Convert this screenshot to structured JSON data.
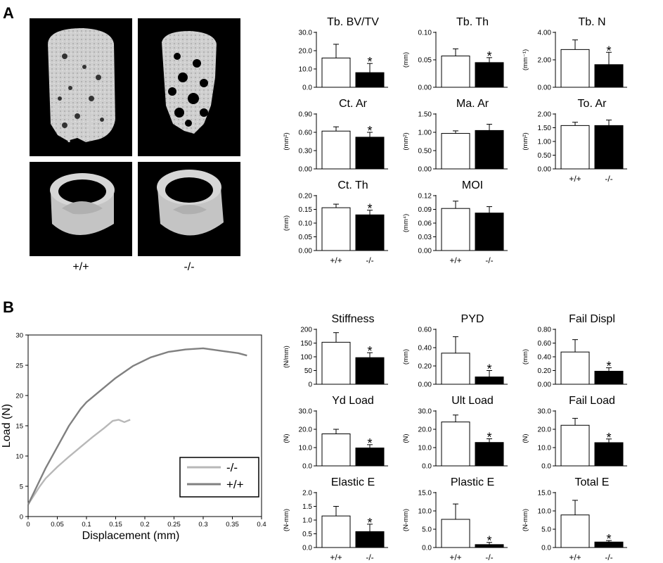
{
  "panel_labels": {
    "a": "A",
    "b": "B"
  },
  "microct": {
    "genotype_labels": [
      "+/+",
      "-/-"
    ],
    "images": [
      {
        "name": "trabecular-wildtype",
        "genotype": "+/+",
        "kind": "trabecular"
      },
      {
        "name": "trabecular-knockout",
        "genotype": "-/-",
        "kind": "trabecular"
      },
      {
        "name": "cortical-wildtype",
        "genotype": "+/+",
        "kind": "cortical"
      },
      {
        "name": "cortical-knockout",
        "genotype": "-/-",
        "kind": "cortical"
      }
    ]
  },
  "colors": {
    "wildtype_bar": "#ffffff",
    "knockout_bar": "#000000",
    "wildtype_line": "#808080",
    "knockout_line": "#b8b8b8"
  },
  "chart_data": [
    {
      "type": "bar",
      "panel": "A",
      "title": "Tb. BV/TV",
      "ylabel": "",
      "ylim": [
        0,
        30
      ],
      "ticks": [
        "0.0",
        "10.0",
        "20.0",
        "30.0"
      ],
      "categories": [
        "+/+",
        "-/-"
      ],
      "show_categories": false,
      "values": [
        16.0,
        8.0
      ],
      "errors": [
        7.5,
        5.0
      ],
      "significant": [
        false,
        true
      ]
    },
    {
      "type": "bar",
      "panel": "A",
      "title": "Tb. Th",
      "ylabel": "(mm)",
      "ylim": [
        0,
        0.1
      ],
      "ticks": [
        "0.00",
        "0.05",
        "0.10"
      ],
      "categories": [
        "+/+",
        "-/-"
      ],
      "show_categories": false,
      "values": [
        0.057,
        0.045
      ],
      "errors": [
        0.013,
        0.009
      ],
      "significant": [
        false,
        true
      ]
    },
    {
      "type": "bar",
      "panel": "A",
      "title": "Tb. N",
      "ylabel": "(mm⁻¹)",
      "ylim": [
        0,
        4
      ],
      "ticks": [
        "0.00",
        "2.00",
        "4.00"
      ],
      "categories": [
        "+/+",
        "-/-"
      ],
      "show_categories": false,
      "values": [
        2.75,
        1.65
      ],
      "errors": [
        0.7,
        0.9
      ],
      "significant": [
        false,
        true
      ]
    },
    {
      "type": "bar",
      "panel": "A",
      "title": "Ct. Ar",
      "ylabel": "(mm²)",
      "ylim": [
        0,
        0.9
      ],
      "ticks": [
        "0.00",
        "0.30",
        "0.60",
        "0.90"
      ],
      "categories": [
        "+/+",
        "-/-"
      ],
      "show_categories": false,
      "values": [
        0.62,
        0.52
      ],
      "errors": [
        0.07,
        0.08
      ],
      "significant": [
        false,
        true
      ]
    },
    {
      "type": "bar",
      "panel": "A",
      "title": "Ma. Ar",
      "ylabel": "(mm²)",
      "ylim": [
        0,
        1.5
      ],
      "ticks": [
        "0.00",
        "0.50",
        "1.00",
        "1.50"
      ],
      "categories": [
        "+/+",
        "-/-"
      ],
      "show_categories": false,
      "values": [
        0.97,
        1.05
      ],
      "errors": [
        0.07,
        0.17
      ],
      "significant": [
        false,
        false
      ]
    },
    {
      "type": "bar",
      "panel": "A",
      "title": "To. Ar",
      "ylabel": "(mm²)",
      "ylim": [
        0,
        2
      ],
      "ticks": [
        "0.00",
        "0.50",
        "1.00",
        "1.50",
        "2.00"
      ],
      "categories": [
        "+/+",
        "-/-"
      ],
      "show_categories": true,
      "values": [
        1.58,
        1.58
      ],
      "errors": [
        0.12,
        0.2
      ],
      "significant": [
        false,
        false
      ]
    },
    {
      "type": "bar",
      "panel": "A",
      "title": "Ct. Th",
      "ylabel": "(mm)",
      "ylim": [
        0,
        0.2
      ],
      "ticks": [
        "0.00",
        "0.05",
        "0.10",
        "0.15",
        "0.20"
      ],
      "categories": [
        "+/+",
        "-/-"
      ],
      "show_categories": true,
      "values": [
        0.156,
        0.13
      ],
      "errors": [
        0.013,
        0.017
      ],
      "significant": [
        false,
        true
      ]
    },
    {
      "type": "bar",
      "panel": "A",
      "title": "MOI",
      "ylabel": "(mm⁴)",
      "ylim": [
        0,
        0.12
      ],
      "ticks": [
        "0.00",
        "0.03",
        "0.06",
        "0.09",
        "0.12"
      ],
      "categories": [
        "+/+",
        "-/-"
      ],
      "show_categories": true,
      "values": [
        0.092,
        0.082
      ],
      "errors": [
        0.016,
        0.014
      ],
      "significant": [
        false,
        false
      ]
    },
    {
      "type": "bar",
      "panel": "B",
      "title": "Stiffness",
      "ylabel": "(N/mm)",
      "ylim": [
        0,
        200
      ],
      "ticks": [
        "0",
        "50",
        "100",
        "150",
        "200"
      ],
      "categories": [
        "+/+",
        "-/-"
      ],
      "show_categories": false,
      "values": [
        153,
        97
      ],
      "errors": [
        35,
        18
      ],
      "significant": [
        false,
        true
      ]
    },
    {
      "type": "bar",
      "panel": "B",
      "title": "PYD",
      "ylabel": "(mm)",
      "ylim": [
        0,
        0.6
      ],
      "ticks": [
        "0.00",
        "0.20",
        "0.40",
        "0.60"
      ],
      "categories": [
        "+/+",
        "-/-"
      ],
      "show_categories": false,
      "values": [
        0.34,
        0.08
      ],
      "errors": [
        0.18,
        0.07
      ],
      "significant": [
        false,
        true
      ]
    },
    {
      "type": "bar",
      "panel": "B",
      "title": "Fail Displ",
      "ylabel": "(mm)",
      "ylim": [
        0,
        0.8
      ],
      "ticks": [
        "0.00",
        "0.20",
        "0.40",
        "0.60",
        "0.80"
      ],
      "categories": [
        "+/+",
        "-/-"
      ],
      "show_categories": false,
      "values": [
        0.47,
        0.19
      ],
      "errors": [
        0.18,
        0.05
      ],
      "significant": [
        false,
        true
      ]
    },
    {
      "type": "bar",
      "panel": "B",
      "title": "Yd Load",
      "ylabel": "(N)",
      "ylim": [
        0,
        30
      ],
      "ticks": [
        "0.0",
        "10.0",
        "20.0",
        "30.0"
      ],
      "categories": [
        "+/+",
        "-/-"
      ],
      "show_categories": false,
      "values": [
        17.5,
        9.8
      ],
      "errors": [
        2.5,
        1.8
      ],
      "significant": [
        false,
        true
      ]
    },
    {
      "type": "bar",
      "panel": "B",
      "title": "Ult Load",
      "ylabel": "(N)",
      "ylim": [
        0,
        30
      ],
      "ticks": [
        "0.0",
        "10.0",
        "20.0",
        "30.0"
      ],
      "categories": [
        "+/+",
        "-/-"
      ],
      "show_categories": false,
      "values": [
        24.0,
        12.8
      ],
      "errors": [
        3.8,
        2.0
      ],
      "significant": [
        false,
        true
      ]
    },
    {
      "type": "bar",
      "panel": "B",
      "title": "Fail Load",
      "ylabel": "(N)",
      "ylim": [
        0,
        30
      ],
      "ticks": [
        "0.0",
        "10.0",
        "20.0",
        "30.0"
      ],
      "categories": [
        "+/+",
        "-/-"
      ],
      "show_categories": false,
      "values": [
        22.2,
        12.7
      ],
      "errors": [
        3.8,
        2.0
      ],
      "significant": [
        false,
        true
      ]
    },
    {
      "type": "bar",
      "panel": "B",
      "title": "Elastic E",
      "ylabel": "(N-mm)",
      "ylim": [
        0,
        2
      ],
      "ticks": [
        "0.0",
        "0.5",
        "1.0",
        "1.5",
        "2.0"
      ],
      "categories": [
        "+/+",
        "-/-"
      ],
      "show_categories": true,
      "values": [
        1.15,
        0.58
      ],
      "errors": [
        0.35,
        0.27
      ],
      "significant": [
        false,
        true
      ]
    },
    {
      "type": "bar",
      "panel": "B",
      "title": "Plastic E",
      "ylabel": "(N-mm)",
      "ylim": [
        0,
        15
      ],
      "ticks": [
        "0.0",
        "5.0",
        "10.0",
        "15.0"
      ],
      "categories": [
        "+/+",
        "-/-"
      ],
      "show_categories": true,
      "values": [
        7.7,
        0.8
      ],
      "errors": [
        4.2,
        0.6
      ],
      "significant": [
        false,
        true
      ]
    },
    {
      "type": "bar",
      "panel": "B",
      "title": "Total E",
      "ylabel": "(N-mm)",
      "ylim": [
        0,
        15
      ],
      "ticks": [
        "0.0",
        "5.0",
        "10.0",
        "15.0"
      ],
      "categories": [
        "+/+",
        "-/-"
      ],
      "show_categories": true,
      "values": [
        8.9,
        1.5
      ],
      "errors": [
        4.0,
        0.4
      ],
      "significant": [
        false,
        true
      ]
    },
    {
      "type": "line",
      "panel": "B",
      "title": "",
      "xlabel": "Displacement (mm)",
      "ylabel": "Load (N)",
      "xlim": [
        0,
        0.4
      ],
      "ylim": [
        0,
        30
      ],
      "xticks": [
        "0",
        "0.05",
        "0.1",
        "0.15",
        "0.2",
        "0.25",
        "0.3",
        "0.35",
        "0.4"
      ],
      "yticks": [
        "0",
        "5",
        "10",
        "15",
        "20",
        "25",
        "30"
      ],
      "legend_position": "bottom-right",
      "series": [
        {
          "name": "-/-",
          "color": "#b8b8b8",
          "x": [
            0,
            0.01,
            0.02,
            0.03,
            0.05,
            0.07,
            0.09,
            0.11,
            0.13,
            0.145,
            0.155,
            0.165,
            0.175
          ],
          "y": [
            2,
            3.5,
            5,
            6.3,
            8.2,
            9.9,
            11.5,
            13.1,
            14.6,
            15.8,
            16.0,
            15.6,
            16.0
          ]
        },
        {
          "name": "+/+",
          "color": "#808080",
          "x": [
            0,
            0.01,
            0.02,
            0.03,
            0.05,
            0.07,
            0.09,
            0.1,
            0.12,
            0.15,
            0.18,
            0.21,
            0.24,
            0.27,
            0.3,
            0.33,
            0.36,
            0.375
          ],
          "y": [
            2,
            4,
            6,
            8,
            11.5,
            15,
            17.8,
            18.9,
            20.5,
            22.9,
            24.9,
            26.3,
            27.2,
            27.6,
            27.8,
            27.4,
            27.0,
            26.6
          ]
        }
      ]
    }
  ]
}
